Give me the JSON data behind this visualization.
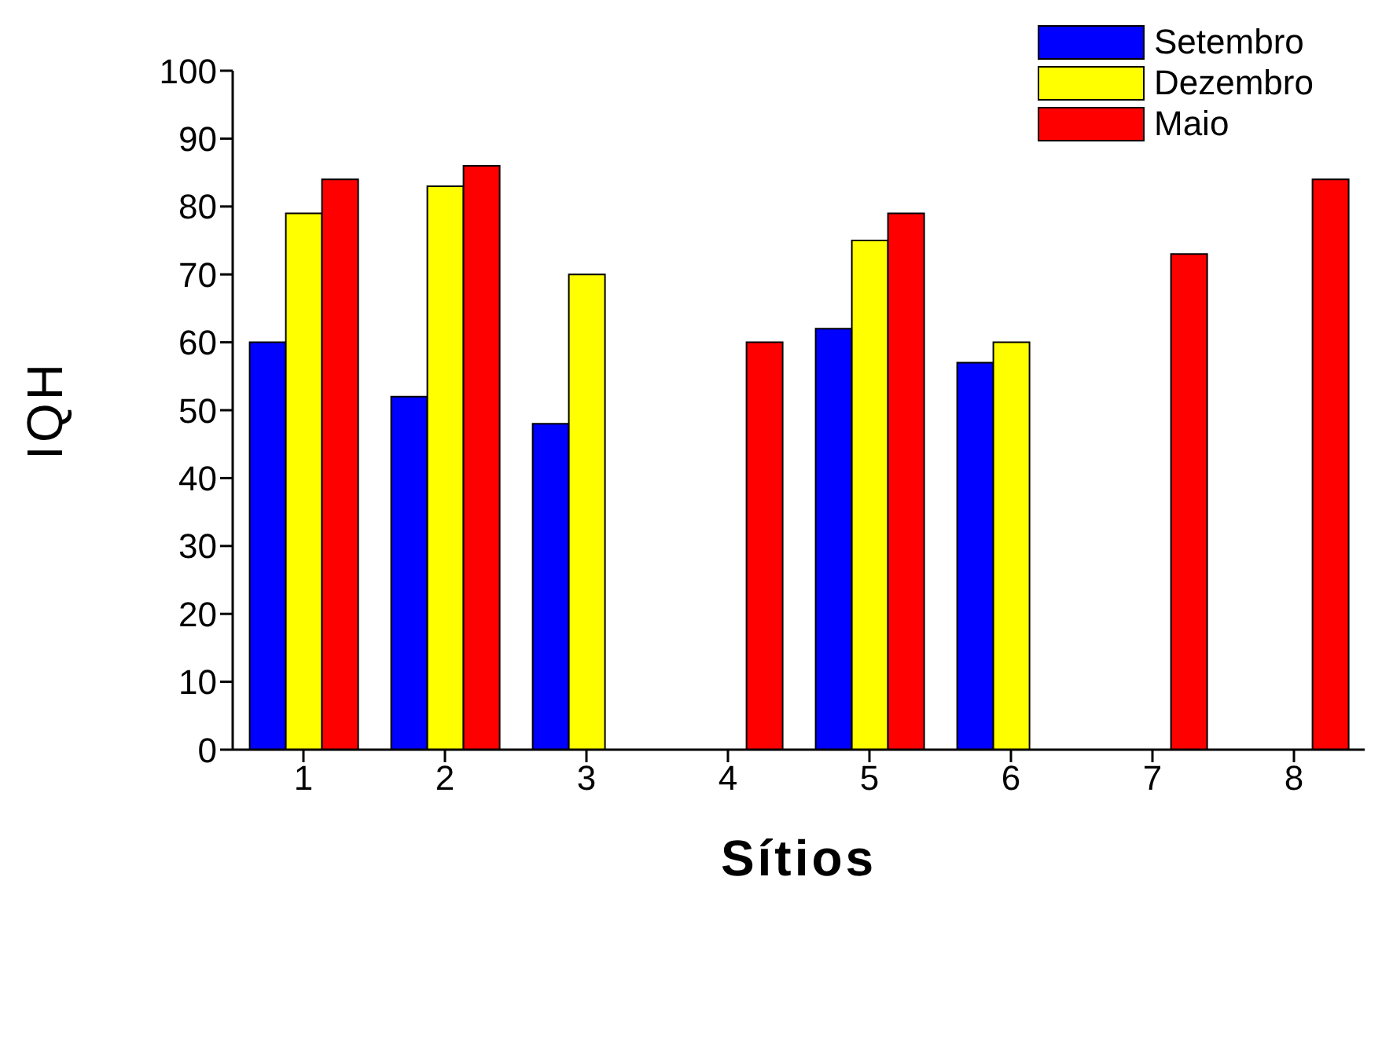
{
  "chart_data": {
    "type": "bar",
    "xlabel": "Sítios",
    "ylabel": "IQH",
    "categories": [
      "1",
      "2",
      "3",
      "4",
      "5",
      "6",
      "7",
      "8"
    ],
    "series": [
      {
        "name": "Setembro",
        "color": "#0000ff",
        "values": [
          60,
          52,
          48,
          null,
          62,
          57,
          null,
          null
        ]
      },
      {
        "name": "Dezembro",
        "color": "#ffff00",
        "values": [
          79,
          83,
          70,
          null,
          75,
          60,
          null,
          null
        ]
      },
      {
        "name": "Maio",
        "color": "#ff0000",
        "values": [
          84,
          86,
          null,
          60,
          79,
          null,
          73,
          84
        ]
      }
    ],
    "ylim": [
      0,
      100
    ],
    "yticks": [
      0,
      10,
      20,
      30,
      40,
      50,
      60,
      70,
      80,
      90,
      100
    ],
    "grid": false,
    "legend": "top right"
  }
}
